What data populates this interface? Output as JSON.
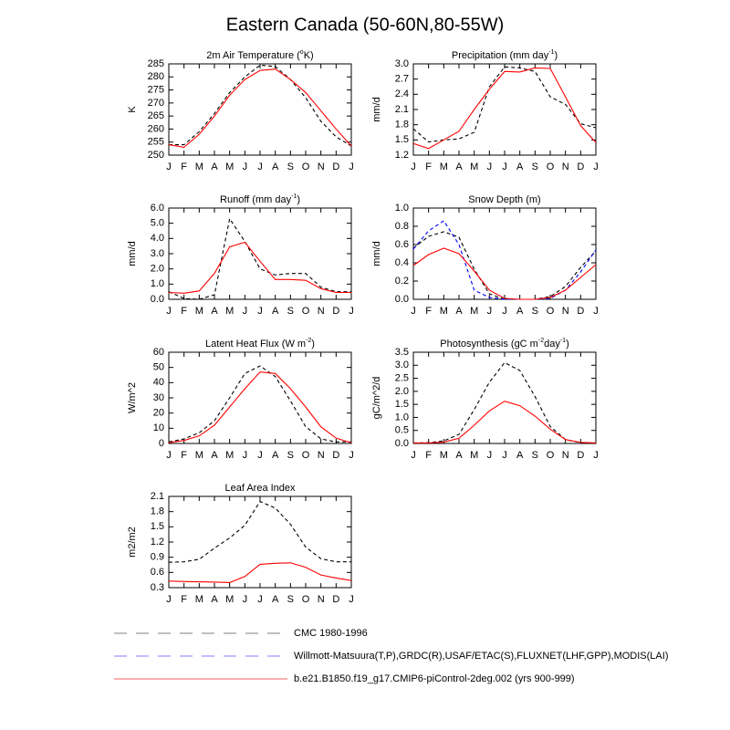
{
  "title": "Eastern Canada (50-60N,80-55W)",
  "chart_data": [
    {
      "type": "line",
      "title": [
        {
          "text": "2m Air Temperature ("
        },
        {
          "text": "o",
          "sup": true
        },
        {
          "text": "K)"
        }
      ],
      "ylabel": "K",
      "categories": [
        "J",
        "F",
        "M",
        "A",
        "M",
        "J",
        "J",
        "A",
        "S",
        "O",
        "N",
        "D",
        "J"
      ],
      "ylim": [
        250,
        285
      ],
      "yticks": [
        250,
        255,
        260,
        265,
        270,
        275,
        280,
        285
      ],
      "series": [
        {
          "color": "#000000",
          "dash": true,
          "values": [
            254,
            254,
            259,
            266,
            274,
            280,
            284.5,
            284,
            279,
            272,
            263,
            257,
            253.5
          ]
        },
        {
          "color": "#ff0000",
          "dash": false,
          "values": [
            254,
            253,
            258,
            265,
            273,
            279,
            282.5,
            283,
            279,
            274,
            267,
            260,
            253.5
          ]
        }
      ]
    },
    {
      "type": "line",
      "title": [
        {
          "text": "Precipitation (mm day"
        },
        {
          "text": "-1",
          "sup": true
        },
        {
          "text": ")"
        }
      ],
      "ylabel": "mm/d",
      "categories": [
        "J",
        "F",
        "M",
        "A",
        "M",
        "J",
        "J",
        "A",
        "S",
        "O",
        "N",
        "D",
        "J"
      ],
      "ylim": [
        1.2,
        3
      ],
      "yticks": [
        1.2,
        1.5,
        1.8,
        2.1,
        2.4,
        2.7,
        {
          "value": 3,
          "label": "3.0"
        }
      ],
      "series": [
        {
          "color": "#000000",
          "dash": true,
          "values": [
            1.72,
            1.46,
            1.5,
            1.52,
            1.65,
            2.55,
            2.94,
            2.92,
            2.85,
            2.35,
            2.2,
            1.82,
            1.74
          ]
        },
        {
          "color": "#ff0000",
          "dash": false,
          "values": [
            1.43,
            1.33,
            1.5,
            1.67,
            2.1,
            2.5,
            2.85,
            2.84,
            2.92,
            2.91,
            2.35,
            1.78,
            1.45
          ]
        }
      ]
    },
    {
      "type": "line",
      "title": [
        {
          "text": "Runoff (mm day"
        },
        {
          "text": "-1",
          "sup": true
        },
        {
          "text": ")"
        }
      ],
      "ylabel": "mm/d",
      "categories": [
        "J",
        "F",
        "M",
        "A",
        "M",
        "J",
        "J",
        "A",
        "S",
        "O",
        "N",
        "D",
        "J"
      ],
      "ylim": [
        0,
        6
      ],
      "yticks": [
        {
          "value": 0,
          "label": "0.0"
        },
        {
          "value": 1,
          "label": "1.0"
        },
        {
          "value": 2,
          "label": "2.0"
        },
        {
          "value": 3,
          "label": "3.0"
        },
        {
          "value": 4,
          "label": "4.0"
        },
        {
          "value": 5,
          "label": "5.0"
        },
        {
          "value": 6,
          "label": "6.0"
        }
      ],
      "series": [
        {
          "color": "#000000",
          "dash": true,
          "values": [
            0.5,
            0.05,
            0,
            0.3,
            5.3,
            3.8,
            2,
            1.6,
            1.7,
            1.7,
            0.8,
            0.5,
            0.5
          ]
        },
        {
          "color": "#ff0000",
          "dash": false,
          "values": [
            0.45,
            0.4,
            0.55,
            1.7,
            3.45,
            3.75,
            2.5,
            1.3,
            1.3,
            1.25,
            0.7,
            0.45,
            0.45
          ]
        }
      ]
    },
    {
      "type": "line",
      "title": [
        {
          "text": "Snow Depth (m)"
        }
      ],
      "ylabel": "mm/d",
      "categories": [
        "J",
        "F",
        "M",
        "A",
        "M",
        "J",
        "J",
        "A",
        "S",
        "O",
        "N",
        "D",
        "J"
      ],
      "ylim": [
        0,
        1
      ],
      "yticks": [
        {
          "value": 0,
          "label": "0.0"
        },
        0.2,
        0.4,
        0.6,
        0.8,
        {
          "value": 1,
          "label": "1.0"
        }
      ],
      "series": [
        {
          "color": "#000000",
          "dash": true,
          "values": [
            0.56,
            0.69,
            0.74,
            0.68,
            0.33,
            0.06,
            0,
            0,
            0,
            0.03,
            0.14,
            0.35,
            0.53
          ]
        },
        {
          "color": "#0000ff",
          "dash": true,
          "values": [
            0.55,
            0.75,
            0.86,
            0.6,
            0.1,
            0.02,
            0,
            0,
            0,
            0.01,
            0.1,
            0.3,
            0.54
          ]
        },
        {
          "color": "#ff0000",
          "dash": false,
          "values": [
            0.37,
            0.49,
            0.56,
            0.5,
            0.31,
            0.1,
            0.01,
            0,
            0,
            0.02,
            0.1,
            0.24,
            0.38
          ]
        }
      ]
    },
    {
      "type": "line",
      "title": [
        {
          "text": "Latent Heat Flux (W m"
        },
        {
          "text": "-2",
          "sup": true
        },
        {
          "text": ")"
        }
      ],
      "ylabel": "W/m^2",
      "categories": [
        "J",
        "F",
        "M",
        "A",
        "M",
        "J",
        "J",
        "A",
        "S",
        "O",
        "N",
        "D",
        "J"
      ],
      "ylim": [
        0,
        60
      ],
      "yticks": [
        0,
        10,
        20,
        30,
        40,
        50,
        60
      ],
      "series": [
        {
          "color": "#000000",
          "dash": true,
          "values": [
            1,
            3,
            7,
            15,
            30,
            46,
            51,
            44,
            28,
            11,
            3,
            1,
            1
          ]
        },
        {
          "color": "#ff0000",
          "dash": false,
          "values": [
            0.5,
            2,
            5,
            12,
            24,
            36,
            47,
            46,
            36,
            24,
            11,
            3.5,
            0.5
          ]
        }
      ]
    },
    {
      "type": "line",
      "title": [
        {
          "text": "Photosynthesis (gC m"
        },
        {
          "text": "-2",
          "sup": true
        },
        {
          "text": "day"
        },
        {
          "text": "-1",
          "sup": true
        },
        {
          "text": ")"
        }
      ],
      "ylabel": "gC/m^2/d",
      "categories": [
        "J",
        "F",
        "M",
        "A",
        "M",
        "J",
        "J",
        "A",
        "S",
        "O",
        "N",
        "D",
        "J"
      ],
      "ylim": [
        0,
        3.5
      ],
      "yticks": [
        {
          "value": 0,
          "label": "0.0"
        },
        0.5,
        {
          "value": 1,
          "label": "1.0"
        },
        1.5,
        {
          "value": 2,
          "label": "2.0"
        },
        2.5,
        {
          "value": 3,
          "label": "3.0"
        },
        3.5
      ],
      "series": [
        {
          "color": "#000000",
          "dash": true,
          "values": [
            0.02,
            0.03,
            0.1,
            0.35,
            1.3,
            2.35,
            3.1,
            2.8,
            1.8,
            0.65,
            0.15,
            0.03,
            0.02
          ]
        },
        {
          "color": "#ff0000",
          "dash": false,
          "values": [
            0.02,
            0.02,
            0.05,
            0.2,
            0.7,
            1.25,
            1.62,
            1.45,
            1.05,
            0.55,
            0.15,
            0.04,
            0.02
          ]
        }
      ]
    },
    {
      "type": "line",
      "title": [
        {
          "text": "Leaf Area Index"
        }
      ],
      "ylabel": "m2/m2",
      "categories": [
        "J",
        "F",
        "M",
        "A",
        "M",
        "J",
        "J",
        "A",
        "S",
        "O",
        "N",
        "D",
        "J"
      ],
      "ylim": [
        0.3,
        2.1
      ],
      "yticks": [
        0.3,
        0.6,
        0.9,
        1.2,
        1.5,
        1.8,
        2.1
      ],
      "series": [
        {
          "color": "#000000",
          "dash": true,
          "values": [
            0.8,
            0.81,
            0.86,
            1.08,
            1.28,
            1.53,
            2,
            1.87,
            1.55,
            1.1,
            0.87,
            0.81,
            0.81
          ]
        },
        {
          "color": "#ff0000",
          "dash": false,
          "values": [
            0.43,
            0.42,
            0.415,
            0.41,
            0.4,
            0.52,
            0.76,
            0.78,
            0.79,
            0.7,
            0.55,
            0.49,
            0.44
          ]
        }
      ]
    }
  ],
  "legend": [
    {
      "name": "CMC 1980-1996",
      "color": "#999999",
      "dash": true
    },
    {
      "name": "Willmott-Matsuura(T,P),GRDC(R),USAF/ETAC(S),FLUXNET(LHF,GPP),MODIS(LAI)",
      "color": "#9999ff",
      "dash": true
    },
    {
      "name": "b.e21.B1850.f19_g17.CMIP6-piControl-2deg.002 (yrs 900-999)",
      "color": "#ff8080",
      "dash": false
    }
  ]
}
